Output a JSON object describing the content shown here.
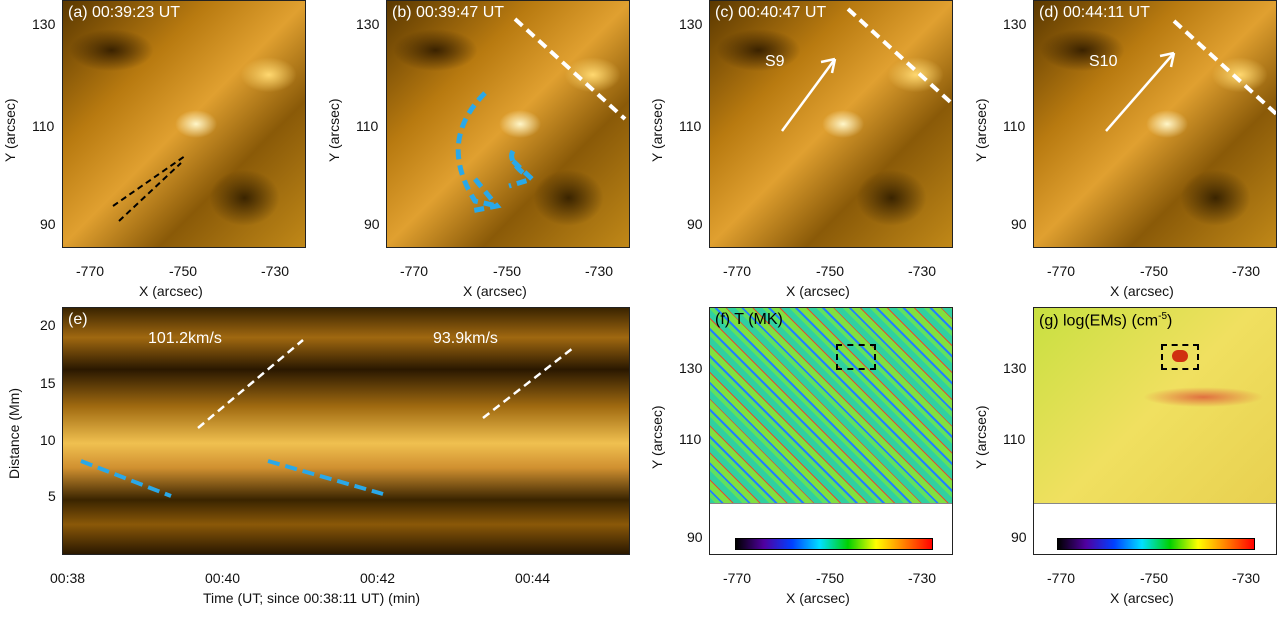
{
  "chart_data": [
    {
      "type": "heatmap",
      "panel": "a",
      "title": "(a)  00:39:23 UT",
      "xlabel": "X (arcsec)",
      "ylabel": "Y (arcsec)",
      "xticks": [
        "-770",
        "-750",
        "-730"
      ],
      "yticks": [
        "130",
        "110",
        "90"
      ],
      "colormap": "gold"
    },
    {
      "type": "heatmap",
      "panel": "b",
      "title": "(b)  00:39:47 UT",
      "xlabel": "X (arcsec)",
      "ylabel": "Y (arcsec)",
      "xticks": [
        "-770",
        "-750",
        "-730"
      ],
      "yticks": [
        "130",
        "110",
        "90"
      ],
      "colormap": "gold"
    },
    {
      "type": "heatmap",
      "panel": "c",
      "title": "(c)  00:40:47 UT",
      "xlabel": "X (arcsec)",
      "ylabel": "Y (arcsec)",
      "xticks": [
        "-770",
        "-750",
        "-730"
      ],
      "yticks": [
        "130",
        "110",
        "90"
      ],
      "annotation": "S9",
      "colormap": "gold"
    },
    {
      "type": "heatmap",
      "panel": "d",
      "title": "(d)  00:44:11 UT",
      "xlabel": "X (arcsec)",
      "ylabel": "Y (arcsec)",
      "xticks": [
        "-770",
        "-750",
        "-730"
      ],
      "yticks": [
        "130",
        "110",
        "90"
      ],
      "annotation": "S10",
      "colormap": "gold"
    },
    {
      "type": "heatmap",
      "panel": "e",
      "title": "(e)",
      "xlabel": "Time (UT; since 00:38:11 UT) (min)",
      "ylabel": "Distance (Mm)",
      "xticks": [
        "00:38",
        "00:40",
        "00:42",
        "00:44"
      ],
      "yticks": [
        "20",
        "15",
        "10",
        "5"
      ],
      "annotations": [
        "101.2km/s",
        "93.9km/s"
      ],
      "colormap": "gold"
    },
    {
      "type": "heatmap",
      "panel": "f",
      "title": "(f) T (MK)",
      "xlabel": "X (arcsec)",
      "ylabel": "Y (arcsec)",
      "xticks": [
        "-770",
        "-750",
        "-730"
      ],
      "yticks": [
        "130",
        "110",
        "90"
      ],
      "colormap": "rainbow"
    },
    {
      "type": "heatmap",
      "panel": "g",
      "title": "(g) log(EMs) (cm",
      "title_sup": "-5",
      "title_end": ")",
      "xlabel": "X (arcsec)",
      "ylabel": "Y (arcsec)",
      "xticks": [
        "-770",
        "-750",
        "-730"
      ],
      "yticks": [
        "130",
        "110",
        "90"
      ],
      "colormap": "rainbow"
    }
  ],
  "colors": {
    "white_dashed": "#ffffff",
    "blue_dashed": "#2aa8e8",
    "black_dashed": "#000000"
  }
}
